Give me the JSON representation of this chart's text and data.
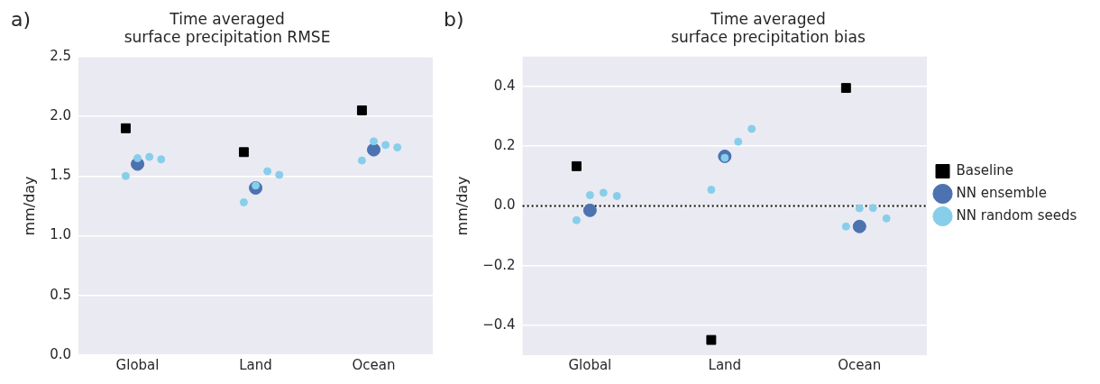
{
  "chart_data": [
    {
      "type": "scatter",
      "title": "Time averaged\nsurface precipitation RMSE",
      "ylabel": "mm/day",
      "annotations": [
        "a)"
      ],
      "categories": [
        "Global",
        "Land",
        "Ocean"
      ],
      "ylim": [
        0,
        2.5
      ],
      "yticks": [
        {
          "value": 0,
          "label": "0.0"
        },
        {
          "value": 0.5,
          "label": "0.5"
        },
        {
          "value": 1,
          "label": "1.0"
        },
        {
          "value": 1.5,
          "label": "1.5"
        },
        {
          "value": 2,
          "label": "2.0"
        },
        {
          "value": 2.5,
          "label": "2.5"
        }
      ],
      "grid": "y",
      "legend": false,
      "series": [
        {
          "color": "#000000",
          "marker": "square",
          "x": [
            "Global",
            "Land",
            "Ocean"
          ],
          "values": [
            1.9,
            1.7,
            2.05
          ]
        },
        {
          "color": "#4c72b0",
          "marker": "circle",
          "x": [
            "Global",
            "Land",
            "Ocean"
          ],
          "values": [
            1.6,
            1.4,
            1.72
          ]
        },
        {
          "color": "#87ceeb",
          "marker": "circle",
          "x": [
            "Global",
            "Global",
            "Global",
            "Global",
            "Land",
            "Land",
            "Land",
            "Land",
            "Ocean",
            "Ocean",
            "Ocean",
            "Ocean"
          ],
          "values": [
            1.5,
            1.65,
            1.66,
            1.64,
            1.28,
            1.42,
            1.54,
            1.51,
            1.63,
            1.79,
            1.76,
            1.74
          ]
        }
      ]
    },
    {
      "type": "scatter",
      "title": "Time averaged\nsurface precipitation bias",
      "ylabel": "mm/day",
      "annotations": [
        "b)"
      ],
      "categories": [
        "Global",
        "Land",
        "Ocean"
      ],
      "ylim": [
        -0.5,
        0.5
      ],
      "yticks": [
        {
          "value": -0.4,
          "label": "−0.4"
        },
        {
          "value": -0.2,
          "label": "−0.2"
        },
        {
          "value": 0,
          "label": "0.0"
        },
        {
          "value": 0.2,
          "label": "0.2"
        },
        {
          "value": 0.4,
          "label": "0.4"
        }
      ],
      "grid": "y",
      "legend": "right",
      "ref_lines": [
        {
          "axis": "y",
          "value": 0,
          "color": "#000000",
          "line_style": "dotted"
        }
      ],
      "series": [
        {
          "name": "Baseline",
          "color": "#000000",
          "marker": "square",
          "x": [
            "Global",
            "Land",
            "Ocean"
          ],
          "values": [
            0.133,
            -0.449,
            0.395
          ]
        },
        {
          "name": "NN ensemble",
          "color": "#4c72b0",
          "marker": "circle",
          "x": [
            "Global",
            "Land",
            "Ocean"
          ],
          "values": [
            -0.015,
            0.166,
            -0.069
          ]
        },
        {
          "name": "NN random seeds",
          "color": "#87ceeb",
          "marker": "circle",
          "x": [
            "Global",
            "Global",
            "Global",
            "Global",
            "Land",
            "Land",
            "Land",
            "Land",
            "Ocean",
            "Ocean",
            "Ocean",
            "Ocean"
          ],
          "values": [
            -0.048,
            0.036,
            0.044,
            0.033,
            0.054,
            0.161,
            0.215,
            0.258,
            -0.069,
            -0.008,
            -0.007,
            -0.042
          ]
        }
      ]
    }
  ]
}
